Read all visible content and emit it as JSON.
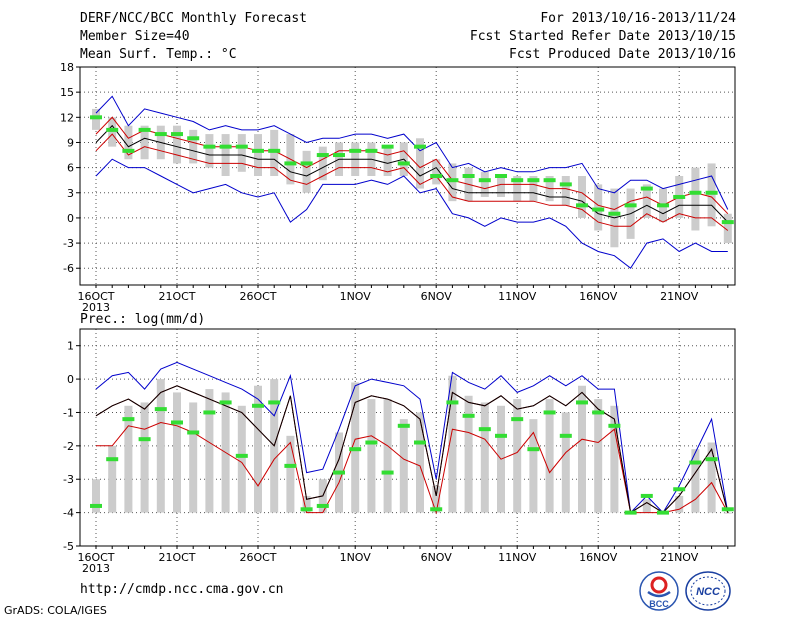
{
  "header": {
    "title": "DERF/NCC/BCC Monthly Forecast",
    "member": "Member Size=40",
    "variable": "Mean Surf. Temp.: °C",
    "period": "For 2013/10/16-2013/11/24",
    "started": "Fcst Started Refer Date 2013/10/15",
    "produced": "Fcst Produced Date 2013/10/16"
  },
  "footer": {
    "url": "http://cmdp.ncc.cma.gov.cn",
    "credit": "GrADS: COLA/IGES",
    "logo1_text": "BCC",
    "logo2_text": "NCC"
  },
  "chart_data": [
    {
      "type": "line",
      "ylabel": "",
      "ylim": [
        -8,
        18
      ],
      "yticks": [
        -6,
        -3,
        0,
        3,
        6,
        9,
        12,
        15,
        18
      ],
      "xlabels": [
        {
          "day": 0,
          "text": "16OCT"
        },
        {
          "day": 5,
          "text": "21OCT"
        },
        {
          "day": 10,
          "text": "26OCT"
        },
        {
          "day": 16,
          "text": "1NOV"
        },
        {
          "day": 21,
          "text": "6NOV"
        },
        {
          "day": 26,
          "text": "11NOV"
        },
        {
          "day": 31,
          "text": "16NOV"
        },
        {
          "day": 36,
          "text": "21NOV"
        }
      ],
      "year_label": "2013",
      "grid": true,
      "colors": {
        "max": "#0000cc",
        "min": "#0000cc",
        "upper": "#cc0000",
        "lower": "#cc0000",
        "mean": "#000000",
        "obs": "#33dd33",
        "box": "#cccccc"
      },
      "series": [
        {
          "role": "max",
          "values": [
            12.5,
            14.5,
            11,
            13,
            12.5,
            12,
            11.5,
            10.5,
            11,
            10.5,
            10.5,
            11,
            10,
            9,
            9.5,
            9.5,
            10,
            10,
            9.5,
            10,
            8,
            9,
            6,
            6.5,
            5.5,
            6,
            5.5,
            5.5,
            6,
            6,
            6.5,
            3.5,
            3,
            4.5,
            4.5,
            3.5,
            4,
            4.5,
            5,
            1
          ]
        },
        {
          "role": "min",
          "values": [
            5,
            7,
            6,
            6,
            5,
            4,
            3,
            3.5,
            4,
            3,
            2.5,
            3,
            -0.5,
            1,
            4,
            4,
            4,
            4.5,
            4,
            5,
            3,
            3.5,
            0.5,
            0,
            -1,
            0,
            -0.5,
            -0.5,
            0,
            -1,
            -3,
            -4,
            -4.5,
            -6,
            -3,
            -2.5,
            -4,
            -3,
            -4,
            -4
          ]
        },
        {
          "role": "upper",
          "values": [
            10,
            12,
            9.5,
            10.5,
            10,
            9.5,
            9,
            8.5,
            8.5,
            8.5,
            8,
            8,
            7,
            6,
            7,
            8,
            8,
            8,
            7.5,
            8,
            6,
            7,
            4.5,
            4,
            3.5,
            4,
            4,
            4,
            3.5,
            3.5,
            3,
            1.5,
            1,
            2,
            2.5,
            1.5,
            2.5,
            3,
            2.5,
            0.5
          ]
        },
        {
          "role": "mean",
          "values": [
            9,
            11,
            8.5,
            9.5,
            9,
            8.5,
            8,
            7.5,
            7.5,
            7.5,
            7,
            7,
            5.5,
            5,
            6,
            7,
            7,
            7,
            6.5,
            7,
            5,
            6,
            3.5,
            3,
            3,
            3,
            3,
            3,
            2.5,
            2.5,
            2,
            0.5,
            0,
            0.5,
            1.5,
            0.5,
            1.5,
            1.5,
            1.5,
            -0.5
          ]
        },
        {
          "role": "lower",
          "values": [
            8,
            10,
            7.5,
            8.5,
            8,
            7.5,
            7,
            6.5,
            6.5,
            6.5,
            6,
            6,
            4.5,
            4,
            5,
            6,
            6,
            6,
            5.5,
            6,
            4,
            5,
            2.5,
            2,
            2,
            2,
            2,
            2,
            1.5,
            1.5,
            1,
            -0.5,
            -1,
            -1,
            0.5,
            -0.5,
            0.5,
            0,
            0,
            -1.5
          ]
        },
        {
          "role": "obs",
          "values": [
            12,
            10.5,
            8,
            10.5,
            10,
            10,
            9.5,
            8.5,
            8.5,
            8.5,
            8,
            8,
            6.5,
            6.5,
            7.5,
            7.5,
            8,
            8,
            8.5,
            6.5,
            8.5,
            5,
            4.5,
            5,
            4.5,
            5,
            4.5,
            4.5,
            4.5,
            4,
            1.5,
            1,
            0.5,
            1.5,
            3.5,
            1.5,
            2.5,
            3,
            3,
            -0.5
          ]
        },
        {
          "role": "box_top",
          "values": [
            13,
            12,
            11,
            11,
            11,
            11,
            10.5,
            10,
            10,
            10,
            10,
            10.5,
            10,
            8,
            8.5,
            9,
            9,
            9,
            8.5,
            9,
            9.5,
            7,
            6.5,
            6,
            5.5,
            5,
            5,
            5,
            5,
            5,
            5,
            4,
            3.5,
            3.5,
            4,
            3.5,
            5,
            6,
            6.5,
            0.5
          ]
        },
        {
          "role": "box_bottom",
          "values": [
            10.5,
            8.5,
            7,
            7,
            7,
            6.5,
            6.5,
            6,
            5,
            5.5,
            5,
            5,
            4,
            3,
            4.5,
            5,
            5,
            5,
            5,
            5,
            3.5,
            4,
            2,
            2,
            2.5,
            2.5,
            2,
            2,
            2,
            1.5,
            0,
            -1.5,
            -3.5,
            -2.5,
            0,
            -0.5,
            0,
            -1.5,
            -1,
            -3
          ]
        }
      ]
    },
    {
      "type": "line",
      "ylabel": "Prec.: log(mm/d)",
      "ylim": [
        -5,
        1.5
      ],
      "yticks": [
        -5,
        -4,
        -3,
        -2,
        -1,
        0,
        1
      ],
      "xlabels": [
        {
          "day": 0,
          "text": "16OCT"
        },
        {
          "day": 5,
          "text": "21OCT"
        },
        {
          "day": 10,
          "text": "26OCT"
        },
        {
          "day": 16,
          "text": "1NOV"
        },
        {
          "day": 21,
          "text": "6NOV"
        },
        {
          "day": 26,
          "text": "11NOV"
        },
        {
          "day": 31,
          "text": "16NOV"
        },
        {
          "day": 36,
          "text": "21NOV"
        }
      ],
      "year_label": "2013",
      "grid": true,
      "colors": {
        "max": "#0000cc",
        "min": "#0000cc",
        "upper": "#cc0000",
        "lower": "#cc0000",
        "mean": "#000000",
        "obs": "#33dd33",
        "box": "#cccccc"
      },
      "series": [
        {
          "role": "max",
          "values": [
            -0.3,
            0.1,
            0.2,
            -0.3,
            0.3,
            0.5,
            0.3,
            0.1,
            -0.1,
            -0.3,
            -0.6,
            -1.1,
            0.1,
            -2.8,
            -2.7,
            -1.5,
            -0.2,
            0,
            -0.1,
            -0.2,
            -0.6,
            -3,
            0.2,
            -0.1,
            -0.3,
            0.1,
            -0.4,
            -0.2,
            0.1,
            -0.2,
            0.1,
            -0.3,
            -0.3,
            -4,
            -3.5,
            -4,
            -3.2,
            -2.2,
            -1.2,
            -4
          ]
        },
        {
          "role": "upper",
          "values": [
            -1.1,
            -0.8,
            -0.6,
            -0.9,
            -0.4,
            -0.2,
            -0.4,
            -0.6,
            -0.8,
            -1,
            -1.5,
            -2,
            -0.5,
            -3.6,
            -3.5,
            -2.4,
            -0.7,
            -0.5,
            -0.6,
            -0.8,
            -1.2,
            -3.5,
            -0.4,
            -0.7,
            -0.8,
            -0.5,
            -0.9,
            -0.8,
            -0.5,
            -0.8,
            -0.4,
            -0.9,
            -1.2,
            -4,
            -3.7,
            -4,
            -3.5,
            -2.8,
            -2.1,
            -4
          ]
        },
        {
          "role": "mean",
          "values": [
            -1.1,
            -0.8,
            -0.6,
            -0.9,
            -0.4,
            -0.2,
            -0.4,
            -0.6,
            -0.8,
            -1,
            -1.5,
            -2,
            -0.5,
            -3.6,
            -3.5,
            -2.4,
            -0.7,
            -0.5,
            -0.6,
            -0.8,
            -1.2,
            -3.5,
            -0.4,
            -0.7,
            -0.8,
            -0.5,
            -0.9,
            -0.8,
            -0.5,
            -0.8,
            -0.4,
            -0.9,
            -1.2,
            -4,
            -3.7,
            -4,
            -3.5,
            -2.8,
            -2.1,
            -4
          ]
        },
        {
          "role": "lower",
          "values": [
            -2,
            -2,
            -1.4,
            -1.5,
            -1.3,
            -1.4,
            -1.6,
            -1.9,
            -2.2,
            -2.5,
            -3.2,
            -2.4,
            -1.9,
            -4,
            -4,
            -3.1,
            -1.8,
            -1.7,
            -2,
            -2.4,
            -2.6,
            -4,
            -1.5,
            -1.6,
            -1.8,
            -2.4,
            -2.2,
            -1.6,
            -2.8,
            -2.2,
            -1.8,
            -1.9,
            -1.5,
            -4,
            -4,
            -4,
            -3.9,
            -3.6,
            -3.1,
            -4
          ]
        },
        {
          "role": "obs",
          "values": [
            -3.8,
            -2.4,
            -1.2,
            -1.8,
            -0.9,
            -1.3,
            -1.6,
            -1,
            -0.7,
            -2.3,
            -0.8,
            -0.7,
            -2.6,
            -3.9,
            -3.8,
            -2.8,
            -2.1,
            -1.9,
            -2.8,
            -1.4,
            -1.9,
            -3.9,
            -0.7,
            -1.1,
            -1.5,
            -1.7,
            -1.2,
            -2.1,
            -1,
            -1.7,
            -0.7,
            -1,
            -1.4,
            -4,
            -3.5,
            -4,
            -3.3,
            -2.5,
            -2.4,
            -3.9
          ]
        },
        {
          "role": "box_top",
          "values": [
            -3,
            -2,
            -0.8,
            -0.7,
            0,
            -0.4,
            -0.7,
            -0.3,
            -0.4,
            -0.8,
            -0.2,
            0,
            -1.7,
            -3.5,
            -3,
            -1.6,
            -0.1,
            -0.6,
            -0.6,
            -1.2,
            -1,
            -3.2,
            0.1,
            -0.5,
            -0.7,
            -0.8,
            -0.6,
            -1.2,
            -0.6,
            -1,
            -0.2,
            -0.6,
            -0.8,
            -4,
            -3.6,
            -4,
            -3.5,
            -2.1,
            -1.9,
            -4
          ]
        },
        {
          "role": "box_bottom",
          "values": [
            -4,
            -4,
            -4,
            -4,
            -4,
            -4,
            -4,
            -4,
            -4,
            -4,
            -4,
            -4,
            -4,
            -4,
            -4,
            -4,
            -4,
            -4,
            -4,
            -4,
            -4,
            -4,
            -4,
            -4,
            -4,
            -4,
            -4,
            -4,
            -4,
            -4,
            -4,
            -4,
            -4,
            -4,
            -4,
            -4,
            -4,
            -4,
            -4,
            -4
          ]
        }
      ]
    }
  ]
}
